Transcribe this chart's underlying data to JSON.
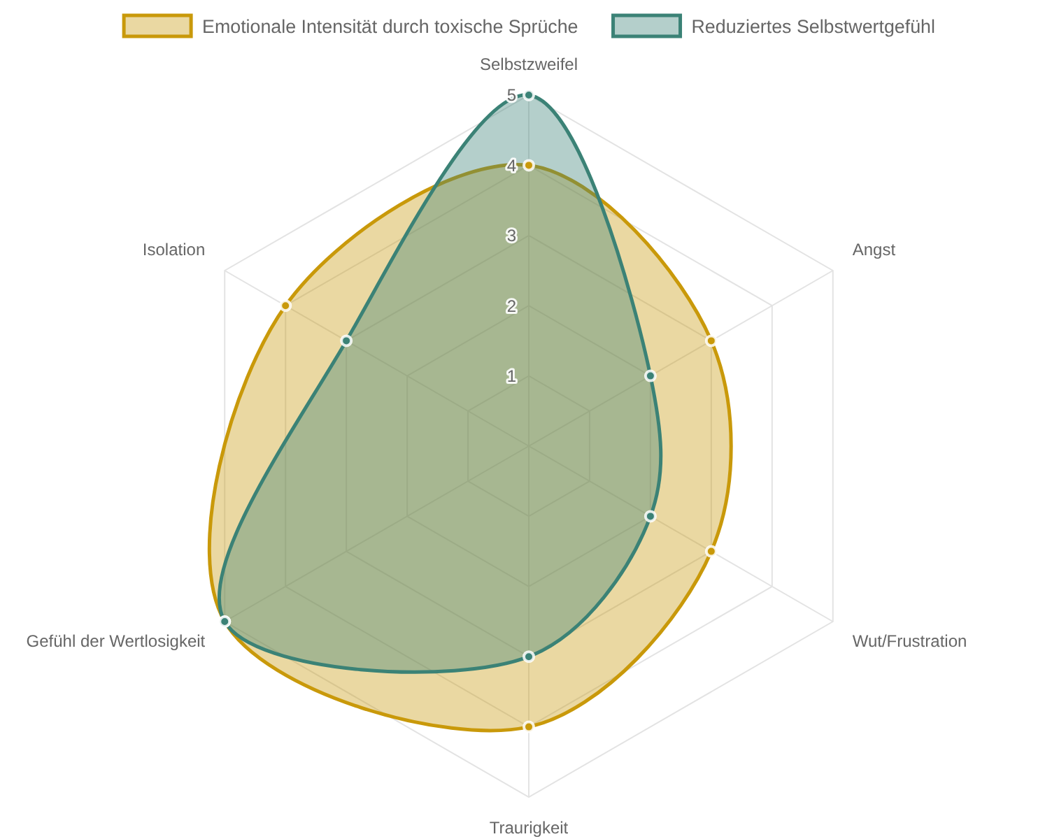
{
  "chart_data": {
    "type": "radar",
    "categories": [
      "Selbstzweifel",
      "Angst",
      "Wut/Frustration",
      "Traurigkeit",
      "Gefühl der Wertlosigkeit",
      "Isolation"
    ],
    "series": [
      {
        "name": "Emotionale Intensität durch toxische Sprüche",
        "color": "#c9990a",
        "values": [
          4,
          3,
          3,
          4,
          5,
          4
        ]
      },
      {
        "name": "Reduziertes Selbstwertgefühl",
        "color": "#3b8276",
        "values": [
          5,
          2,
          2,
          3,
          5,
          3
        ]
      }
    ],
    "ylim": [
      0,
      5
    ],
    "yticks": [
      1,
      2,
      3,
      4,
      5
    ],
    "grid": true,
    "legend": "top",
    "marker": "circle"
  }
}
